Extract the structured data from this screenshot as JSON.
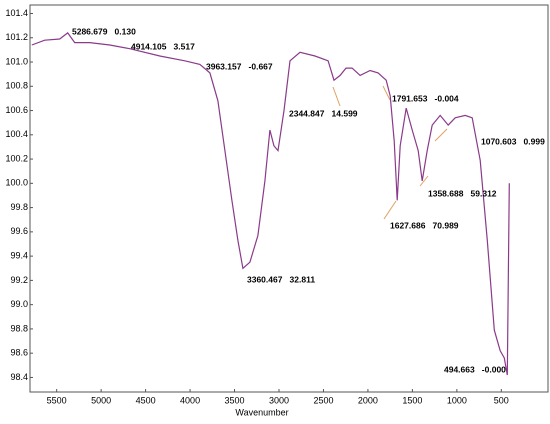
{
  "chart_data": {
    "type": "line",
    "x_label": "Wavenumber",
    "x": [
      5780,
      5635,
      5466,
      5376,
      5297,
      5128,
      4903,
      4678,
      4340,
      4059,
      3890,
      3777,
      3687,
      3608,
      3530,
      3462,
      3406,
      3327,
      3237,
      3158,
      3102,
      3057,
      3011,
      2944,
      2876,
      2764,
      2595,
      2448,
      2381,
      2313,
      2246,
      2178,
      2088,
      1976,
      1885,
      1795,
      1750,
      1705,
      1671,
      1637,
      1570,
      1502,
      1435,
      1390,
      1333,
      1277,
      1187,
      1097,
      1018,
      906,
      827,
      737,
      658,
      579,
      512,
      466,
      433,
      410
    ],
    "series": [
      {
        "color": "#8a3a8a",
        "values": [
          101.14,
          101.18,
          101.19,
          101.24,
          101.16,
          101.16,
          101.14,
          101.11,
          101.05,
          101.01,
          100.98,
          100.91,
          100.68,
          100.27,
          99.86,
          99.53,
          99.3,
          99.35,
          99.57,
          100.02,
          100.44,
          100.31,
          100.27,
          100.6,
          101.01,
          101.08,
          101.05,
          101.01,
          100.85,
          100.89,
          100.95,
          100.95,
          100.89,
          100.93,
          100.91,
          100.85,
          100.72,
          100.35,
          99.86,
          100.31,
          100.62,
          100.44,
          100.27,
          100.02,
          100.27,
          100.48,
          100.56,
          100.48,
          100.54,
          100.56,
          100.54,
          100.19,
          99.53,
          98.79,
          98.62,
          98.56,
          98.42,
          100.0
        ]
      }
    ],
    "xlim": [
      5800,
      -25
    ],
    "ylim": [
      98.28,
      101.47
    ],
    "xticks": [
      5500,
      5000,
      4500,
      4000,
      3500,
      3000,
      2500,
      2000,
      1500,
      1000,
      500
    ],
    "yticks": [
      98.4,
      98.6,
      98.8,
      {
        "value": 99,
        "label": "99.0"
      },
      99.2,
      99.4,
      99.6,
      99.8,
      {
        "value": 100,
        "label": "100.0"
      },
      100.2,
      100.4,
      100.6,
      100.8,
      {
        "value": 101,
        "label": "101.0"
      },
      101.2,
      101.4
    ],
    "annotations": [
      "5286.679   0.130",
      "4914.105   3.517",
      "3963.157   -0.667",
      "2344.847   14.599",
      "1791.653   -0.004",
      "1070.603   0.999",
      "1358.688   59.312",
      "1627.686   70.989",
      "3360.467   32.811",
      "494.663   -0.000"
    ]
  }
}
